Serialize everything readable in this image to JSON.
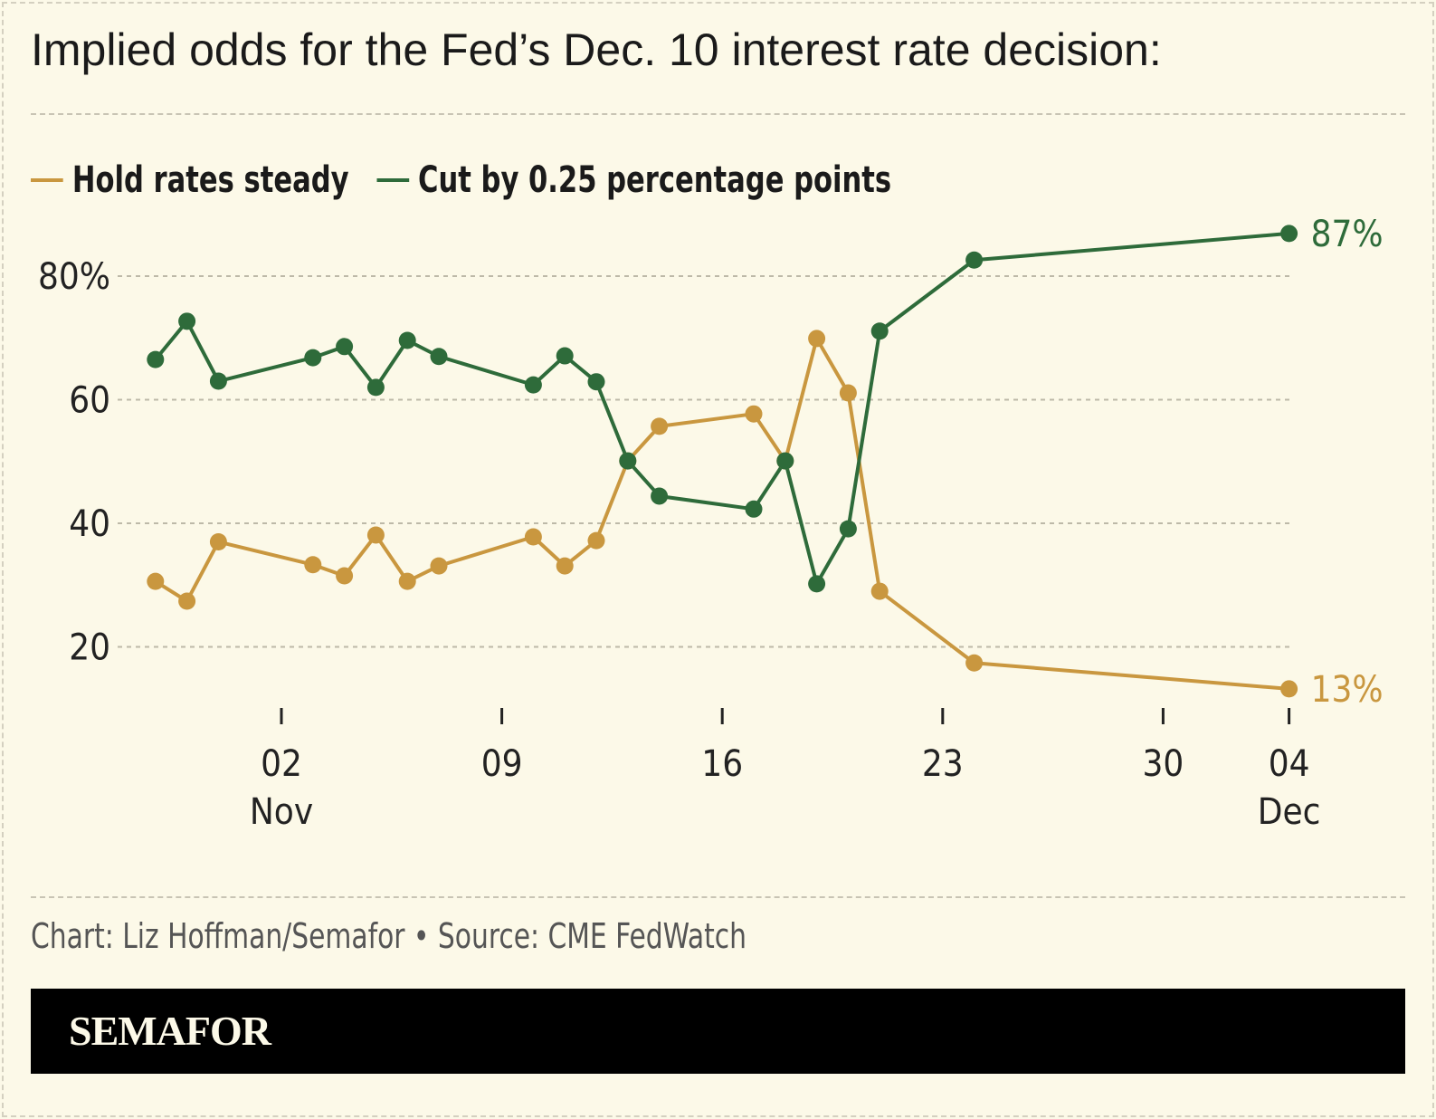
{
  "title": "Implied odds for the Fed’s Dec. 10 interest rate decision:",
  "credit": "Chart: Liz Hoffman/Semafor • Source: CME FedWatch",
  "brand": "SEMAFOR",
  "chart_data": {
    "type": "line",
    "title": "Implied odds for the Fed’s Dec. 10 interest rate decision:",
    "xlabel": "",
    "ylabel": "",
    "ylim": [
      0,
      90
    ],
    "yticks": [
      20,
      40,
      60,
      80
    ],
    "ytick_labels": [
      "20",
      "40",
      "60",
      "80%"
    ],
    "xticks": [
      {
        "date": "2025-11-02",
        "label": "02",
        "sub": "Nov"
      },
      {
        "date": "2025-11-09",
        "label": "09",
        "sub": ""
      },
      {
        "date": "2025-11-16",
        "label": "16",
        "sub": ""
      },
      {
        "date": "2025-11-23",
        "label": "23",
        "sub": ""
      },
      {
        "date": "2025-11-30",
        "label": "30",
        "sub": ""
      },
      {
        "date": "2025-12-04",
        "label": "04",
        "sub": "Dec"
      }
    ],
    "grid": "horizontal dashed",
    "legend": "top-left",
    "x": [
      "2025-10-29",
      "2025-10-30",
      "2025-10-31",
      "2025-11-03",
      "2025-11-04",
      "2025-11-05",
      "2025-11-06",
      "2025-11-07",
      "2025-11-10",
      "2025-11-11",
      "2025-11-12",
      "2025-11-13",
      "2025-11-14",
      "2025-11-17",
      "2025-11-18",
      "2025-11-19",
      "2025-11-20",
      "2025-11-21",
      "2025-11-24",
      "2025-12-04"
    ],
    "series": [
      {
        "name": "Hold rates steady",
        "color": "#c9973f",
        "end_label": "13%",
        "values": [
          30.6,
          27.4,
          37.0,
          33.3,
          31.5,
          38.1,
          30.6,
          33.1,
          37.8,
          33.1,
          37.2,
          50.1,
          55.7,
          57.7,
          50.1,
          69.9,
          61.1,
          29.0,
          17.4,
          13.2
        ]
      },
      {
        "name": "Cut by 0.25 percentage points",
        "color": "#2e6b3a",
        "end_label": "87%",
        "values": [
          66.5,
          72.7,
          63.0,
          66.8,
          68.6,
          62.0,
          69.6,
          67.0,
          62.4,
          67.1,
          62.9,
          50.1,
          44.4,
          42.3,
          50.1,
          30.2,
          39.1,
          71.1,
          82.6,
          86.9
        ]
      }
    ]
  }
}
